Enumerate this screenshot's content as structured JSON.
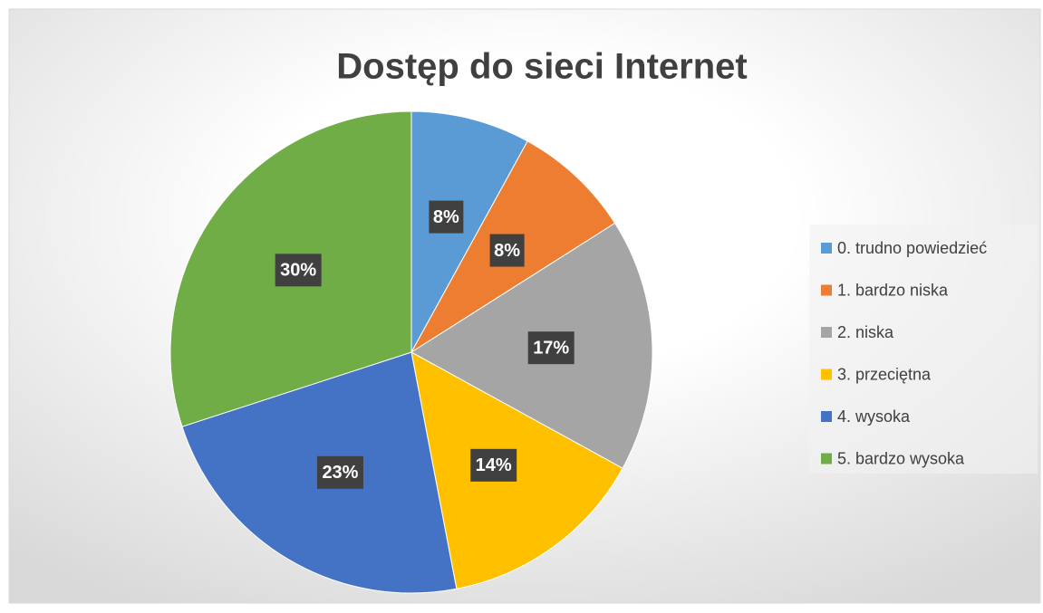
{
  "chart_data": {
    "type": "pie",
    "title": "Dostęp do sieci Internet",
    "categories": [
      "0. trudno powiedzieć",
      "1. bardzo niska",
      "2. niska",
      "3. przeciętna",
      "4. wysoka",
      "5. bardzo wysoka"
    ],
    "values": [
      8,
      8,
      17,
      14,
      23,
      30
    ],
    "value_labels": [
      "8%",
      "8%",
      "17%",
      "14%",
      "23%",
      "30%"
    ],
    "colors": [
      "#5b9bd5",
      "#ed7d31",
      "#a5a5a5",
      "#ffc000",
      "#4472c4",
      "#70ad47"
    ],
    "legend": "right"
  }
}
